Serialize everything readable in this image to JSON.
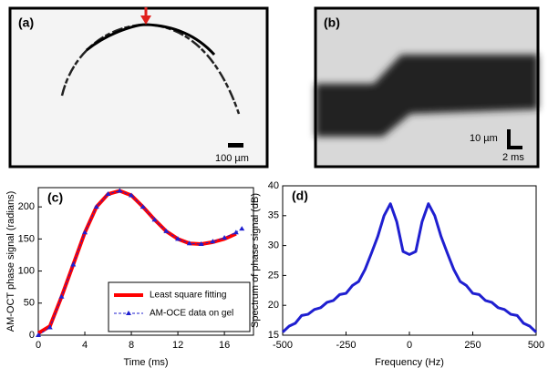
{
  "images": [
    {
      "label": "(a)",
      "scale_label": "100 µm"
    },
    {
      "label": "(b)",
      "scale_labels": [
        "10 µm",
        "2 ms"
      ]
    }
  ],
  "chart_data": [
    {
      "type": "line",
      "label": "(c)",
      "x_label": "Time (ms)",
      "y_label": "AM-OCT phase signal (radians)",
      "x": [
        0,
        1,
        2,
        3,
        4,
        5,
        6,
        7,
        8,
        9,
        10,
        11,
        12,
        13,
        14,
        15,
        16,
        17,
        17.5
      ],
      "series": [
        {
          "name": "Least square fitting",
          "color": "#ff0000",
          "line_style": "solid",
          "line_width": 4,
          "marker": "none",
          "values": [
            3,
            14,
            60,
            110,
            160,
            200,
            220,
            225,
            218,
            200,
            180,
            162,
            150,
            143,
            142,
            145,
            150,
            158,
            null
          ]
        },
        {
          "name": "AM-OCE data on gel",
          "color": "#1f1fd0",
          "line_style": "dashed",
          "line_width": 1,
          "marker": "triangle",
          "values": [
            0,
            12,
            60,
            110,
            160,
            200,
            220,
            225,
            218,
            200,
            180,
            162,
            150,
            143,
            142,
            146,
            152,
            160,
            166
          ]
        }
      ],
      "xlim": [
        0,
        18.5
      ],
      "ylim": [
        0,
        230
      ],
      "xticks": [
        0,
        4,
        8,
        12,
        16
      ],
      "yticks": [
        0,
        50,
        100,
        150,
        200
      ],
      "legend": "lower right"
    },
    {
      "type": "line",
      "label": "(d)",
      "x_label": "Frequency (Hz)",
      "y_label": "Spectrum of phase signal (dB)",
      "x": [
        -500,
        -475,
        -450,
        -425,
        -400,
        -375,
        -350,
        -325,
        -300,
        -275,
        -250,
        -225,
        -200,
        -175,
        -150,
        -125,
        -100,
        -75,
        -50,
        -25,
        0,
        25,
        50,
        75,
        100,
        125,
        150,
        175,
        200,
        225,
        250,
        275,
        300,
        325,
        350,
        375,
        400,
        425,
        450,
        475,
        500
      ],
      "series": [
        {
          "color": "#1f1fd0",
          "line_style": "solid",
          "line_width": 3,
          "marker": "none",
          "values": [
            15.5,
            16.5,
            17,
            18.3,
            18.5,
            19.3,
            19.6,
            20.5,
            20.8,
            21.8,
            22,
            23.3,
            24,
            26,
            28.7,
            31.5,
            35,
            37,
            34,
            29,
            28.5,
            29,
            34,
            37,
            35,
            31.5,
            28.7,
            26,
            24,
            23.3,
            22,
            21.8,
            20.8,
            20.5,
            19.6,
            19.3,
            18.5,
            18.3,
            17,
            16.5,
            15.5
          ]
        }
      ],
      "xlim": [
        -500,
        500
      ],
      "ylim": [
        15,
        40
      ],
      "xticks": [
        -500,
        -250,
        0,
        250,
        500
      ],
      "yticks": [
        15,
        20,
        25,
        30,
        35,
        40
      ]
    }
  ]
}
